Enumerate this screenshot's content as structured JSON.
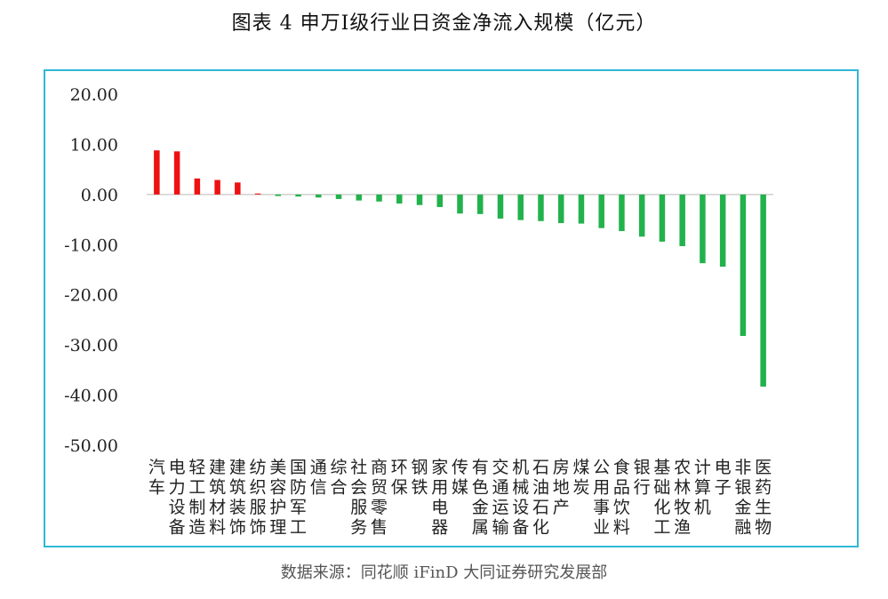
{
  "title": "图表 4   申万Ⅰ级行业日资金净流入规模（亿元）",
  "source": "数据来源：同花顺 iFinD 大同证券研究发展部",
  "colors": {
    "positive": "#ee1111",
    "negative": "#22b24c",
    "frame": "#2fb8d6",
    "axis": "#d0d0d0"
  },
  "chart_data": {
    "type": "bar",
    "title": "申万Ⅰ级行业日资金净流入规模（亿元）",
    "ylim": [
      -50,
      20
    ],
    "yticks": [
      "20.00",
      "10.00",
      "0.00",
      "-10.00",
      "-20.00",
      "-30.00",
      "-40.00",
      "-50.00"
    ],
    "grid": false,
    "categories": [
      "汽车",
      "电力设备",
      "轻工制造",
      "建筑材料",
      "建筑装饰",
      "纺织服饰",
      "美容护理",
      "国防军工",
      "通信",
      "综合",
      "社会服务",
      "商贸零售",
      "环保",
      "钢铁",
      "家用电器",
      "传媒",
      "有色金属",
      "交通运输",
      "机械设备",
      "石油石化",
      "房地产",
      "煤炭",
      "公用事业",
      "食品饮料",
      "银行",
      "基础化工",
      "农林牧渔",
      "计算机",
      "电子",
      "非银金融",
      "医药生物"
    ],
    "values": [
      8.8,
      8.6,
      3.2,
      2.9,
      2.4,
      0.2,
      -0.3,
      -0.4,
      -0.6,
      -0.9,
      -1.2,
      -1.4,
      -1.8,
      -2.1,
      -2.5,
      -3.8,
      -3.9,
      -4.8,
      -5.1,
      -5.3,
      -5.7,
      -5.8,
      -6.7,
      -7.3,
      -8.4,
      -9.4,
      -10.3,
      -13.7,
      -14.4,
      -28.2,
      -38.3
    ]
  }
}
